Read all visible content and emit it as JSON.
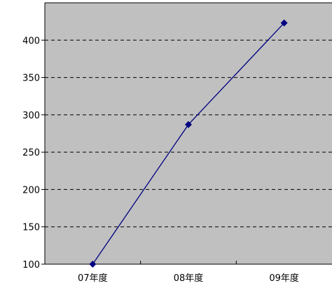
{
  "chart_data": {
    "type": "line",
    "title": "",
    "xlabel": "",
    "ylabel": "",
    "categories": [
      "07年度",
      "08年度",
      "09年度"
    ],
    "series": [
      {
        "values": [
          100,
          287,
          423
        ]
      }
    ],
    "ylim": [
      100,
      450
    ],
    "yticks": [
      "100",
      "150",
      "200",
      "250",
      "300",
      "350",
      "400"
    ],
    "grid": true,
    "legend": "none",
    "colors": {
      "plot_background": "#c0c0c0",
      "line": "#000080",
      "marker": "#000080",
      "gridline": "#000000",
      "axis": "#000000"
    }
  }
}
